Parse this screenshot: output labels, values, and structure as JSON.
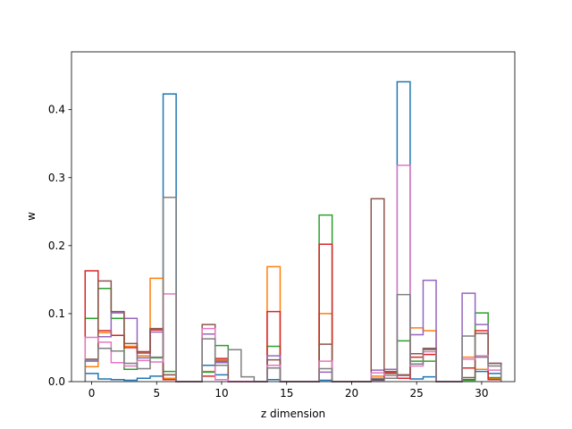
{
  "chart_data": {
    "type": "step-histogram",
    "xlabel": "z dimension",
    "ylabel": "w",
    "xlim": [
      -1.55,
      32.55
    ],
    "ylim": [
      0,
      0.485
    ],
    "xticks": [
      0,
      5,
      10,
      15,
      20,
      25,
      30
    ],
    "yticks": [
      0.0,
      0.1,
      0.2,
      0.3,
      0.4
    ],
    "bin_edges_start": -0.5,
    "bin_width": 1,
    "series": [
      {
        "color": "#1f77b4",
        "values": [
          0.012,
          0.004,
          0.003,
          0.002,
          0.005,
          0.008,
          0.423,
          0,
          0,
          0.024,
          0.01,
          0,
          0,
          0,
          0.003,
          0,
          0,
          0,
          0.002,
          0,
          0,
          0,
          0.002,
          0.009,
          0.441,
          0.004,
          0.007,
          0,
          0,
          0.003,
          0.015,
          0.012
        ]
      },
      {
        "color": "#ff7f0e",
        "values": [
          0.022,
          0.072,
          0.068,
          0.052,
          0.038,
          0.152,
          0.005,
          0,
          0,
          0.015,
          0.032,
          0,
          0,
          0,
          0.169,
          0,
          0,
          0,
          0.1,
          0,
          0,
          0,
          0.008,
          0.009,
          0.005,
          0.079,
          0.075,
          0,
          0,
          0.036,
          0.018,
          0.005
        ]
      },
      {
        "color": "#2ca02c",
        "values": [
          0.093,
          0.137,
          0.093,
          0.018,
          0.035,
          0.035,
          0.015,
          0,
          0,
          0.014,
          0.053,
          0,
          0,
          0,
          0.052,
          0,
          0,
          0,
          0.245,
          0,
          0,
          0,
          0.003,
          0.012,
          0.06,
          0.03,
          0.03,
          0,
          0,
          0.002,
          0.101,
          0.006
        ]
      },
      {
        "color": "#d62728",
        "values": [
          0.163,
          0.075,
          0.068,
          0.05,
          0.044,
          0.076,
          0.003,
          0,
          0,
          0.008,
          0.034,
          0,
          0,
          0,
          0.103,
          0,
          0,
          0,
          0.202,
          0,
          0,
          0,
          0.003,
          0.013,
          0.005,
          0.036,
          0.04,
          0,
          0,
          0.02,
          0.075,
          0.003
        ]
      },
      {
        "color": "#9467bd",
        "values": [
          0.03,
          0.066,
          0.101,
          0.093,
          0.035,
          0.073,
          0.01,
          0,
          0,
          0.07,
          0.028,
          0,
          0,
          0,
          0.038,
          0,
          0,
          0,
          0.014,
          0,
          0,
          0,
          0.017,
          0.018,
          0.009,
          0.069,
          0.149,
          0,
          0,
          0.13,
          0.084,
          0.027
        ]
      },
      {
        "color": "#8c564b",
        "values": [
          0.033,
          0.148,
          0.103,
          0.056,
          0.042,
          0.078,
          0.01,
          0,
          0,
          0.084,
          0.03,
          0,
          0,
          0,
          0.032,
          0,
          0,
          0,
          0.055,
          0,
          0,
          0,
          0.269,
          0.015,
          0.01,
          0.041,
          0.049,
          0,
          0,
          0.006,
          0.071,
          0.027
        ]
      },
      {
        "color": "#e377c2",
        "values": [
          0.065,
          0.058,
          0.028,
          0.023,
          0.031,
          0.029,
          0.129,
          0,
          0,
          0.078,
          0.003,
          0,
          0,
          0,
          0.024,
          0,
          0,
          0,
          0.03,
          0,
          0,
          0,
          0.013,
          0.009,
          0.318,
          0.023,
          0.044,
          0,
          0,
          0.033,
          0.038,
          0.017
        ]
      },
      {
        "color": "#7f7f7f",
        "values": [
          0.032,
          0.049,
          0.045,
          0.027,
          0.019,
          0.036,
          0.271,
          0,
          0,
          0.063,
          0.024,
          0.047,
          0.007,
          0,
          0.02,
          0,
          0,
          0,
          0.019,
          0,
          0,
          0,
          0.005,
          0.005,
          0.128,
          0.026,
          0.047,
          0,
          0,
          0.067,
          0.036,
          0.023
        ]
      }
    ]
  }
}
